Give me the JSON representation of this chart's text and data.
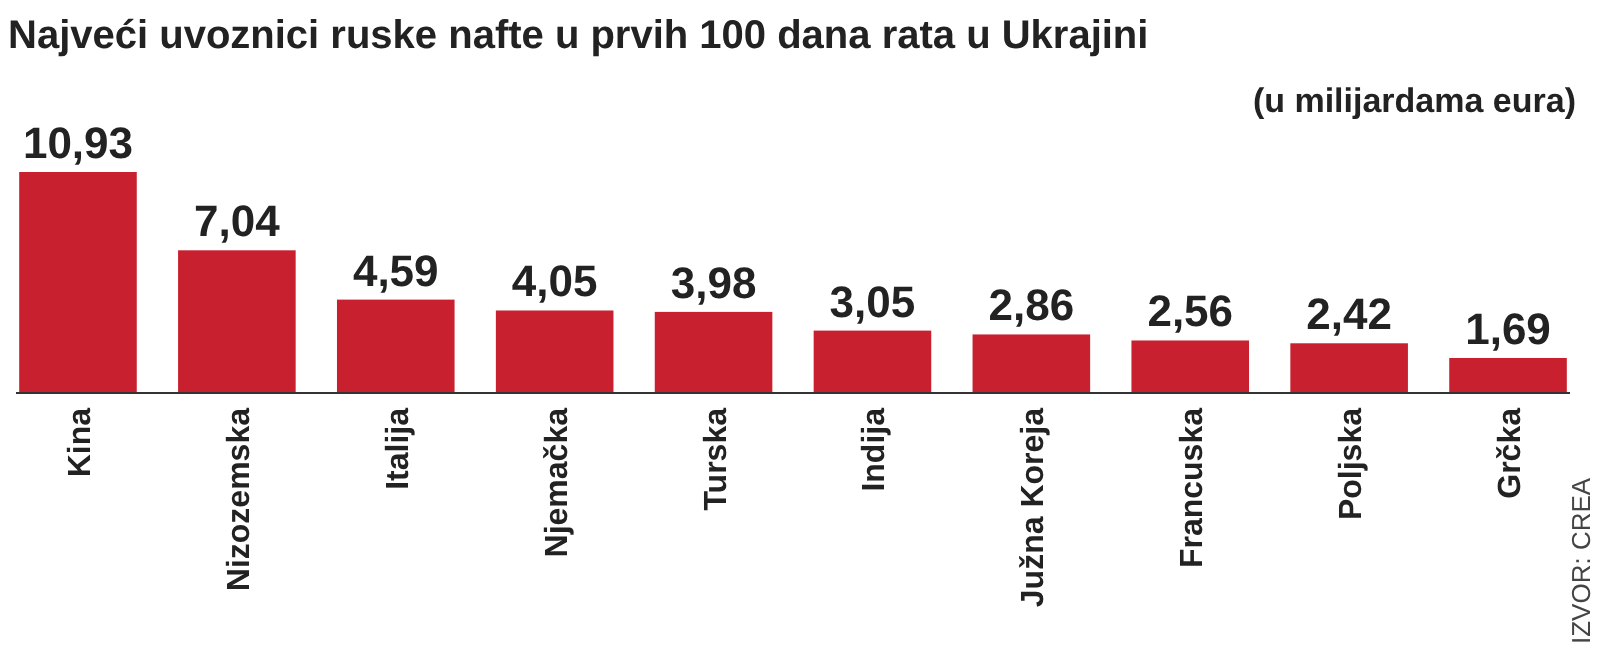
{
  "chart_data": {
    "type": "bar",
    "title": "Najveći uvoznici ruske nafte u prvih 100 dana rata u Ukrajini",
    "subtitle": "(u milijardama eura)",
    "categories": [
      "Kina",
      "Nizozemska",
      "Italija",
      "Njemačka",
      "Turska",
      "Indija",
      "Južna Koreja",
      "Francuska",
      "Poljska",
      "Grčka"
    ],
    "values": [
      10.93,
      7.04,
      4.59,
      4.05,
      3.98,
      3.05,
      2.86,
      2.56,
      2.42,
      1.69
    ],
    "value_labels": [
      "10,93",
      "7,04",
      "4,59",
      "4,05",
      "3,98",
      "3,05",
      "2,86",
      "2,56",
      "2,42",
      "1,69"
    ],
    "color": "#c8202e",
    "annotations": [
      "IZVOR: CREA"
    ]
  }
}
